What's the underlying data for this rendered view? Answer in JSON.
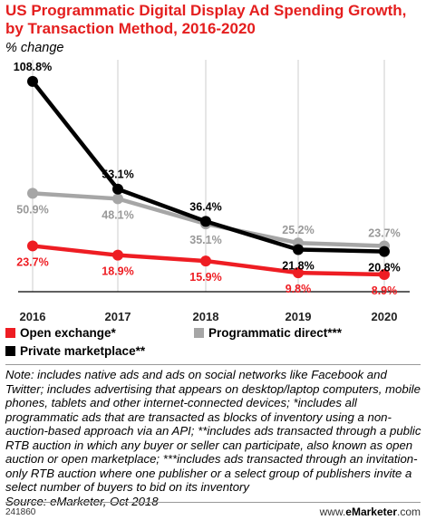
{
  "chart_data": {
    "type": "line",
    "title": "US Programmatic Digital Display Ad Spending Growth, by Transaction Method, 2016-2020",
    "subtitle": "% change",
    "categories": [
      "2016",
      "2017",
      "2018",
      "2019",
      "2020"
    ],
    "ylim": [
      0,
      120
    ],
    "grid": true,
    "legend_position": "bottom",
    "series": [
      {
        "name": "Open exchange*",
        "color": "#ee1d23",
        "values": [
          23.7,
          18.9,
          15.9,
          9.8,
          8.9
        ],
        "labels": [
          "23.7%",
          "18.9%",
          "15.9%",
          "9.8%",
          "8.9%"
        ],
        "label_side": "below"
      },
      {
        "name": "Programmatic direct***",
        "color": "#a6a6a6",
        "values": [
          50.9,
          48.1,
          35.1,
          25.2,
          23.7
        ],
        "labels": [
          "50.9%",
          "48.1%",
          "35.1%",
          "25.2%",
          "23.7%"
        ],
        "label_side": "below_then_above"
      },
      {
        "name": "Private marketplace**",
        "color": "#000000",
        "values": [
          108.8,
          53.1,
          36.4,
          21.8,
          20.8
        ],
        "labels": [
          "108.8%",
          "53.1%",
          "36.4%",
          "21.8%",
          "20.8%"
        ],
        "label_side": "above_then_below"
      }
    ]
  },
  "note": "Note: includes native ads and ads on social networks like Facebook and Twitter; includes advertising that appears on desktop/laptop computers, mobile phones, tablets and other internet-connected devices; *includes all programmatic ads that are transacted as blocks of inventory using a non-auction-based approach via an API; **includes ads transacted through a public RTB auction in which any buyer or seller can participate, also known as open auction or open marketplace; ***includes ads transacted through an invitation-only RTB auction where one publisher or a select group of publishers invite a select number of buyers to bid on its inventory",
  "source": "Source: eMarketer, Oct 2018",
  "footer": {
    "chart_id": "241860",
    "site_prefix": "www.",
    "site_brand": "eMarketer",
    "site_suffix": ".com"
  }
}
